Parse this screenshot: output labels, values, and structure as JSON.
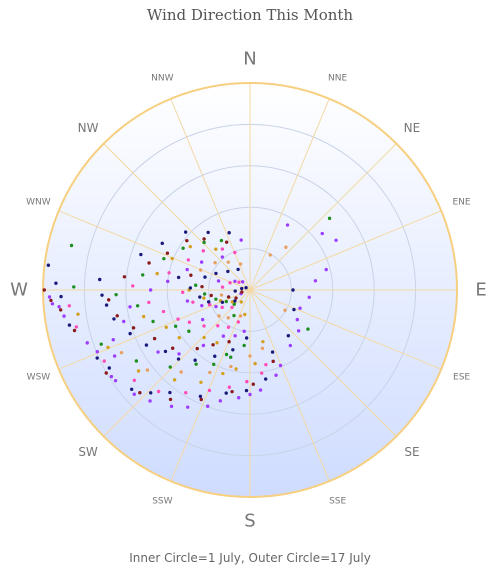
{
  "title": "Wind Direction This Month",
  "footer": "Inner Circle=1 July, Outer Circle=17 July",
  "colors": {
    "rim": "#f7cf80",
    "grid": "#f3d9a3",
    "ring": "#c9d3e6",
    "fill_top": "#ffffff",
    "fill_bottom": "#cfdcff",
    "label_major": "#777777",
    "label_minor": "#777777"
  },
  "chart_data": {
    "type": "scatter",
    "polar": true,
    "title": "Wind Direction This Month",
    "angle_unit": "compass degrees (0=N, clockwise)",
    "radial_axis": "day of July",
    "radial_range": [
      1,
      17
    ],
    "ring_count": 5,
    "directions": [
      "N",
      "NNE",
      "NE",
      "ENE",
      "E",
      "ESE",
      "SE",
      "SSE",
      "S",
      "SSW",
      "SW",
      "WSW",
      "W",
      "WNW",
      "NW",
      "NNW"
    ],
    "major_directions": [
      "N",
      "E",
      "S",
      "W"
    ],
    "series": [
      {
        "color": "#9c3dff",
        "points": [
          [
            268,
            16.5
          ],
          [
            266,
            16.3
          ],
          [
            265,
            15.8
          ],
          [
            262,
            15.5
          ],
          [
            252,
            14.2
          ],
          [
            248,
            13.7
          ],
          [
            238,
            13.6
          ],
          [
            236,
            13.5
          ],
          [
            228,
            13.0
          ],
          [
            222,
            12.5
          ],
          [
            214,
            11.8
          ],
          [
            208,
            11.2
          ],
          [
            200,
            10.5
          ],
          [
            195,
            9.8
          ],
          [
            186,
            9.3
          ],
          [
            180,
            9.0
          ],
          [
            174,
            8.7
          ],
          [
            163,
            7.8
          ],
          [
            158,
            7.2
          ],
          [
            144,
            6.2
          ],
          [
            130,
            5.8
          ],
          [
            122,
            5.2
          ],
          [
            110,
            5.0
          ],
          [
            97,
            5.5
          ],
          [
            82,
            6.0
          ],
          [
            75,
            7.0
          ],
          [
            60,
            8.6
          ],
          [
            52,
            8.0
          ],
          [
            30,
            6.7
          ],
          [
            350,
            4.8
          ],
          [
            320,
            4.2
          ],
          [
            300,
            5.2
          ],
          [
            288,
            6.0
          ],
          [
            276,
            7.3
          ],
          [
            270,
            8.6
          ],
          [
            262,
            10.3
          ],
          [
            256,
            11.0
          ],
          [
            250,
            12.2
          ],
          [
            244,
            12.6
          ],
          [
            236,
            9.5
          ],
          [
            228,
            8.3
          ],
          [
            220,
            6.5
          ],
          [
            210,
            5.0
          ],
          [
            198,
            4.6
          ],
          [
            188,
            4.1
          ],
          [
            260,
            5.8
          ],
          [
            252,
            4.8
          ],
          [
            244,
            3.8
          ],
          [
            238,
            5.2
          ],
          [
            286,
            3.4
          ],
          [
            300,
            2.2
          ],
          [
            318,
            1.7
          ],
          [
            248,
            1.6
          ]
        ]
      },
      {
        "color": "#1f8f1f",
        "points": [
          [
            284,
            15.2
          ],
          [
            271,
            14.6
          ],
          [
            250,
            13.2
          ],
          [
            238,
            11.3
          ],
          [
            226,
            9.5
          ],
          [
            216,
            8.0
          ],
          [
            206,
            7.3
          ],
          [
            196,
            6.3
          ],
          [
            186,
            5.2
          ],
          [
            268,
            11.3
          ],
          [
            262,
            9.7
          ],
          [
            252,
            8.8
          ],
          [
            244,
            7.3
          ],
          [
            236,
            6.6
          ],
          [
            278,
            9.3
          ],
          [
            290,
            8.0
          ],
          [
            302,
            7.0
          ],
          [
            316,
            6.0
          ],
          [
            330,
            5.3
          ],
          [
            275,
            5.1
          ],
          [
            265,
            4.4
          ],
          [
            255,
            3.6
          ],
          [
            244,
            2.9
          ],
          [
            228,
            2.5
          ],
          [
            212,
            3.2
          ],
          [
            200,
            6.2
          ],
          [
            48,
            9.2
          ],
          [
            124,
            6.3
          ]
        ]
      },
      {
        "color": "#ff4db8",
        "points": [
          [
            265,
            15.0
          ],
          [
            258,
            14.7
          ],
          [
            244,
            13.5
          ],
          [
            232,
            12.3
          ],
          [
            222,
            11.5
          ],
          [
            212,
            10.3
          ],
          [
            202,
            9.3
          ],
          [
            192,
            8.6
          ],
          [
            182,
            8.0
          ],
          [
            172,
            7.4
          ],
          [
            168,
            6.8
          ],
          [
            272,
            10.0
          ],
          [
            263,
            8.8
          ],
          [
            256,
            7.8
          ],
          [
            248,
            6.9
          ],
          [
            242,
            6.2
          ],
          [
            232,
            5.4
          ],
          [
            222,
            4.6
          ],
          [
            210,
            4.2
          ],
          [
            282,
            7.3
          ],
          [
            296,
            6.2
          ],
          [
            310,
            5.6
          ],
          [
            326,
            4.7
          ],
          [
            338,
            4.0
          ],
          [
            268,
            6.1
          ],
          [
            258,
            5.4
          ],
          [
            250,
            4.2
          ],
          [
            238,
            3.4
          ],
          [
            226,
            2.8
          ],
          [
            200,
            3.5
          ],
          [
            276,
            3.0
          ],
          [
            290,
            2.5
          ],
          [
            305,
            1.9
          ]
        ]
      },
      {
        "color": "#d4a020",
        "points": [
          [
            262,
            14.4
          ],
          [
            248,
            12.8
          ],
          [
            234,
            11.6
          ],
          [
            220,
            10.0
          ],
          [
            208,
            9.0
          ],
          [
            198,
            7.7
          ],
          [
            190,
            7.1
          ],
          [
            176,
            6.6
          ],
          [
            166,
            5.0
          ],
          [
            256,
            9.4
          ],
          [
            246,
            8.0
          ],
          [
            236,
            7.5
          ],
          [
            224,
            6.0
          ],
          [
            212,
            5.7
          ],
          [
            280,
            8.2
          ],
          [
            292,
            7.4
          ],
          [
            306,
            6.6
          ],
          [
            320,
            5.0
          ],
          [
            270,
            5.6
          ],
          [
            260,
            4.5
          ],
          [
            250,
            3.3
          ],
          [
            236,
            2.5
          ],
          [
            216,
            2.0
          ],
          [
            192,
            2.8
          ]
        ]
      },
      {
        "color": "#1a1a7a",
        "points": [
          [
            277,
            16.7
          ],
          [
            272,
            16.0
          ],
          [
            268,
            15.6
          ],
          [
            259,
            15.2
          ],
          [
            246,
            13.9
          ],
          [
            241,
            13.4
          ],
          [
            230,
            12.9
          ],
          [
            224,
            12.0
          ],
          [
            218,
            11.0
          ],
          [
            205,
            10.0
          ],
          [
            193,
            9.1
          ],
          [
            182,
            8.7
          ],
          [
            170,
            7.9
          ],
          [
            160,
            6.0
          ],
          [
            140,
            5.5
          ],
          [
            114,
            4.6
          ],
          [
            90,
            4.2
          ],
          [
            274,
            12.6
          ],
          [
            268,
            12.4
          ],
          [
            264,
            12.1
          ],
          [
            258,
            11.7
          ],
          [
            250,
            10.8
          ],
          [
            242,
            10.0
          ],
          [
            234,
            9.0
          ],
          [
            226,
            8.6
          ],
          [
            218,
            7.8
          ],
          [
            208,
            6.7
          ],
          [
            196,
            5.7
          ],
          [
            184,
            4.6
          ],
          [
            288,
            9.8
          ],
          [
            298,
            8.6
          ],
          [
            312,
            7.6
          ],
          [
            324,
            6.4
          ],
          [
            340,
            5.6
          ],
          [
            280,
            6.5
          ],
          [
            272,
            5.5
          ],
          [
            262,
            4.8
          ],
          [
            254,
            4.2
          ],
          [
            246,
            3.2
          ],
          [
            234,
            2.3
          ],
          [
            286,
            4.5
          ],
          [
            296,
            3.8
          ],
          [
            310,
            3.1
          ],
          [
            330,
            2.7
          ],
          [
            266,
            2.0
          ],
          [
            280,
            1.5
          ],
          [
            300,
            1.2
          ]
        ]
      },
      {
        "color": "#8b1a1a",
        "points": [
          [
            270,
            16.9
          ],
          [
            267,
            16.4
          ],
          [
            264,
            15.7
          ],
          [
            257,
            14.9
          ],
          [
            240,
            13.8
          ],
          [
            227,
            12.6
          ],
          [
            216,
            11.4
          ],
          [
            204,
            10.2
          ],
          [
            190,
            8.9
          ],
          [
            178,
            8.2
          ],
          [
            162,
            6.7
          ],
          [
            266,
            11.9
          ],
          [
            259,
            11.4
          ],
          [
            252,
            10.4
          ],
          [
            243,
            9.2
          ],
          [
            233,
            8.4
          ],
          [
            222,
            7.0
          ],
          [
            214,
            6.0
          ],
          [
            202,
            5.2
          ],
          [
            276,
            10.7
          ],
          [
            285,
            9.0
          ],
          [
            294,
            7.9
          ],
          [
            308,
            7.1
          ],
          [
            318,
            6.2
          ],
          [
            334,
            5.0
          ],
          [
            284,
            5.6
          ],
          [
            274,
            4.6
          ],
          [
            262,
            3.9
          ],
          [
            252,
            2.6
          ],
          [
            240,
            2.1
          ],
          [
            256,
            1.5
          ]
        ]
      },
      {
        "color": "#e8a060",
        "points": [
          [
            244,
            12.0
          ],
          [
            232,
            11.0
          ],
          [
            220,
            9.2
          ],
          [
            206,
            8.0
          ],
          [
            194,
            7.0
          ],
          [
            180,
            6.0
          ],
          [
            168,
            5.5
          ],
          [
            230,
            4.0
          ],
          [
            218,
            3.6
          ],
          [
            200,
            3.0
          ],
          [
            260,
            3.1
          ],
          [
            292,
            5.0
          ],
          [
            308,
            4.3
          ],
          [
            322,
            3.6
          ],
          [
            340,
            3.0
          ],
          [
            30,
            4.0
          ],
          [
            40,
            5.2
          ],
          [
            120,
            4.0
          ]
        ]
      }
    ]
  }
}
